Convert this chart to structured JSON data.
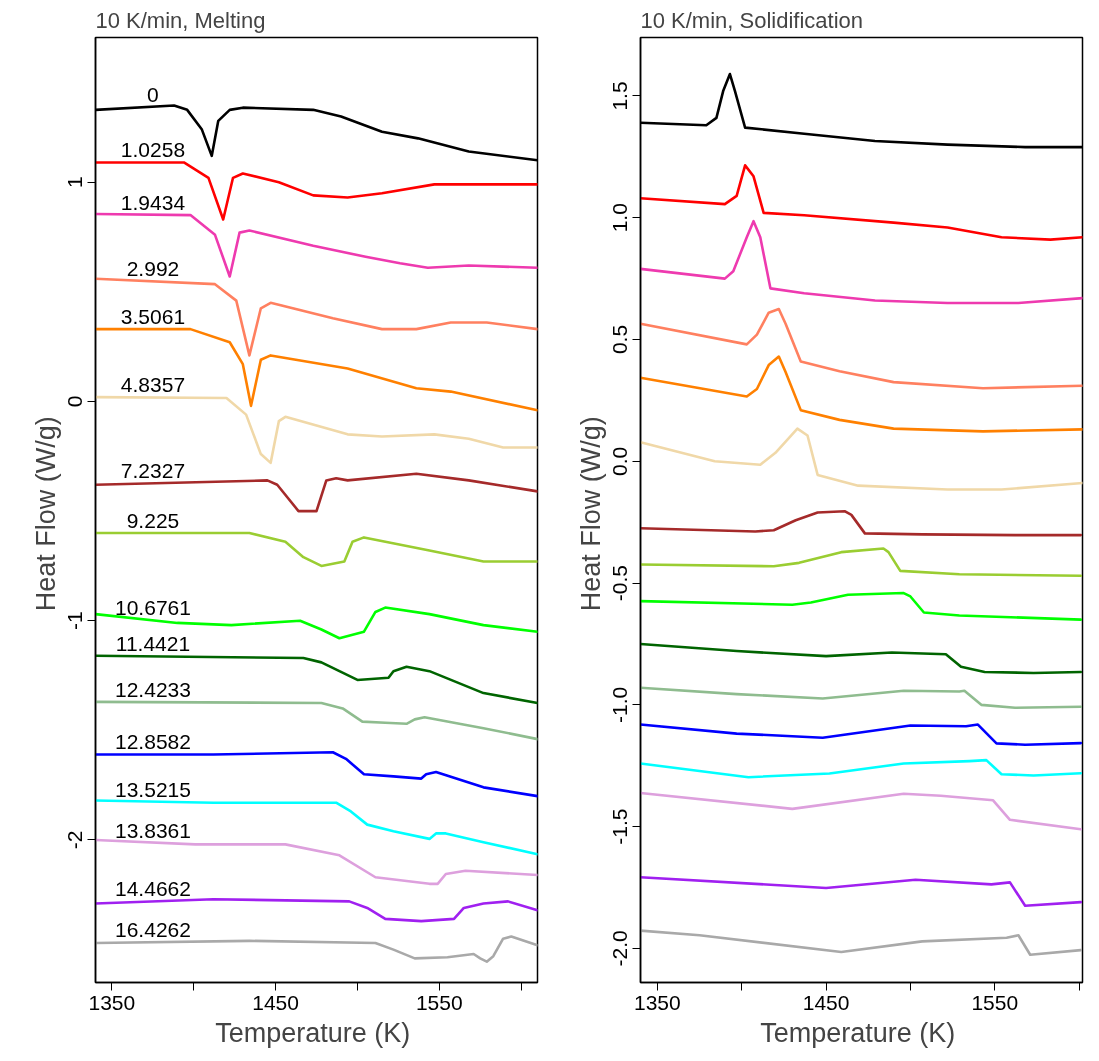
{
  "chart_data": [
    {
      "type": "line",
      "title": "10 K/min, Melting",
      "xlabel": "Temperature  (K)",
      "ylabel": "Heat Flow  (W/g)",
      "xlim": [
        1340,
        1610
      ],
      "ylim": [
        -2.65,
        1.66
      ],
      "xticks": [
        1350,
        {
          "value": 1400,
          "label": null
        },
        1450,
        {
          "value": 1500,
          "label": null
        },
        1550,
        {
          "value": 1600,
          "label": null
        }
      ],
      "yticks": [
        -2,
        -1,
        0,
        1
      ],
      "grid": false,
      "marker": "none",
      "line_style": "solid",
      "series": [
        {
          "name": "0",
          "color": "#000000",
          "x": [
            1340,
            1388,
            1396,
            1405,
            1411,
            1415,
            1422,
            1430,
            1473,
            1490,
            1515,
            1537,
            1568,
            1610
          ],
          "values": [
            1.33,
            1.35,
            1.33,
            1.24,
            1.12,
            1.28,
            1.33,
            1.34,
            1.33,
            1.3,
            1.23,
            1.2,
            1.14,
            1.1
          ]
        },
        {
          "name": "1.0258",
          "color": "#ff0000",
          "x": [
            1340,
            1394,
            1409,
            1418,
            1424,
            1430,
            1452,
            1473,
            1494,
            1515,
            1547,
            1610
          ],
          "values": [
            1.09,
            1.09,
            1.02,
            0.83,
            1.02,
            1.04,
            1.0,
            0.94,
            0.93,
            0.95,
            0.99,
            0.99
          ]
        },
        {
          "name": "1.9434",
          "color": "#ee3aaf",
          "x": [
            1340,
            1398,
            1413,
            1422,
            1428,
            1434,
            1473,
            1505,
            1526,
            1543,
            1568,
            1610
          ],
          "values": [
            0.855,
            0.85,
            0.76,
            0.57,
            0.77,
            0.78,
            0.71,
            0.66,
            0.63,
            0.61,
            0.62,
            0.61
          ]
        },
        {
          "name": "2.992",
          "color": "#ff8060",
          "x": [
            1340,
            1413,
            1426,
            1434,
            1441,
            1447,
            1485,
            1515,
            1536,
            1557,
            1579,
            1610
          ],
          "values": [
            0.56,
            0.535,
            0.46,
            0.21,
            0.425,
            0.45,
            0.38,
            0.33,
            0.33,
            0.36,
            0.36,
            0.33
          ]
        },
        {
          "name": "3.5061",
          "color": "#ff8000",
          "x": [
            1340,
            1398,
            1422,
            1430,
            1435,
            1441,
            1447,
            1494,
            1536,
            1557,
            1610
          ],
          "values": [
            0.33,
            0.33,
            0.27,
            0.17,
            -0.02,
            0.19,
            0.21,
            0.15,
            0.06,
            0.045,
            -0.04
          ]
        },
        {
          "name": "4.8357",
          "color": "#f0d8a8",
          "x": [
            1340,
            1420,
            1432,
            1441,
            1447,
            1452,
            1456,
            1494,
            1515,
            1547,
            1568,
            1589,
            1610
          ],
          "values": [
            0.02,
            0.016,
            -0.06,
            -0.24,
            -0.28,
            -0.09,
            -0.07,
            -0.15,
            -0.16,
            -0.15,
            -0.17,
            -0.21,
            -0.21
          ]
        },
        {
          "name": "7.2327",
          "color": "#a52a2a",
          "x": [
            1340,
            1445,
            1451,
            1464,
            1475,
            1481,
            1487,
            1494,
            1536,
            1568,
            1610
          ],
          "values": [
            -0.38,
            -0.36,
            -0.38,
            -0.5,
            -0.5,
            -0.36,
            -0.35,
            -0.36,
            -0.33,
            -0.36,
            -0.41
          ]
        },
        {
          "name": "9.225",
          "color": "#9acd32",
          "x": [
            1340,
            1434,
            1456,
            1467,
            1478,
            1492,
            1497,
            1504,
            1544,
            1577,
            1610
          ],
          "values": [
            -0.6,
            -0.6,
            -0.64,
            -0.71,
            -0.75,
            -0.73,
            -0.64,
            -0.62,
            -0.68,
            -0.73,
            -0.73
          ]
        },
        {
          "name": "10.6761",
          "color": "#00ff00",
          "x": [
            1340,
            1390,
            1423,
            1465,
            1478,
            1489,
            1504,
            1511,
            1517,
            1544,
            1577,
            1610
          ],
          "values": [
            -0.97,
            -1.01,
            -1.02,
            -1.0,
            -1.04,
            -1.08,
            -1.05,
            -0.96,
            -0.94,
            -0.97,
            -1.02,
            -1.05
          ]
        },
        {
          "name": "11.4421",
          "color": "#006400",
          "x": [
            1340,
            1467,
            1478,
            1500,
            1519,
            1522,
            1530,
            1544,
            1577,
            1610
          ],
          "values": [
            -1.16,
            -1.17,
            -1.19,
            -1.27,
            -1.26,
            -1.23,
            -1.21,
            -1.23,
            -1.33,
            -1.375
          ]
        },
        {
          "name": "12.4233",
          "color": "#8fbc8f",
          "x": [
            1340,
            1478,
            1491,
            1503,
            1517,
            1530,
            1535,
            1541,
            1577,
            1610
          ],
          "values": [
            -1.37,
            -1.375,
            -1.4,
            -1.46,
            -1.465,
            -1.47,
            -1.45,
            -1.44,
            -1.49,
            -1.54
          ]
        },
        {
          "name": "12.8582",
          "color": "#0000ff",
          "x": [
            1340,
            1412,
            1485,
            1493,
            1504,
            1522,
            1539,
            1542,
            1548,
            1577,
            1610
          ],
          "values": [
            -1.61,
            -1.61,
            -1.6,
            -1.63,
            -1.7,
            -1.71,
            -1.72,
            -1.7,
            -1.69,
            -1.76,
            -1.8
          ]
        },
        {
          "name": "13.5215",
          "color": "#00ffff",
          "x": [
            1340,
            1412,
            1487,
            1496,
            1506,
            1522,
            1544,
            1548,
            1554,
            1577,
            1610
          ],
          "values": [
            -1.82,
            -1.83,
            -1.83,
            -1.87,
            -1.93,
            -1.96,
            -1.995,
            -1.97,
            -1.97,
            -2.01,
            -2.065
          ]
        },
        {
          "name": "13.8361",
          "color": "#dda0dd",
          "x": [
            1340,
            1401,
            1456,
            1489,
            1511,
            1544,
            1549,
            1554,
            1566,
            1610
          ],
          "values": [
            -2.0,
            -2.02,
            -2.02,
            -2.07,
            -2.17,
            -2.2,
            -2.2,
            -2.155,
            -2.14,
            -2.16
          ]
        },
        {
          "name": "14.4662",
          "color": "#a020f0",
          "x": [
            1340,
            1412,
            1495,
            1506,
            1517,
            1539,
            1559,
            1565,
            1577,
            1592,
            1610
          ],
          "values": [
            -2.29,
            -2.27,
            -2.28,
            -2.31,
            -2.36,
            -2.37,
            -2.36,
            -2.31,
            -2.29,
            -2.28,
            -2.32
          ]
        },
        {
          "name": "16.4262",
          "color": "#a9a9a9",
          "x": [
            1340,
            1434,
            1511,
            1522,
            1535,
            1555,
            1571,
            1575,
            1579,
            1583,
            1589,
            1594,
            1610
          ],
          "values": [
            -2.47,
            -2.46,
            -2.47,
            -2.5,
            -2.54,
            -2.535,
            -2.52,
            -2.54,
            -2.555,
            -2.53,
            -2.45,
            -2.44,
            -2.48
          ]
        }
      ]
    },
    {
      "type": "line",
      "title": "10 K/min, Solidification",
      "xlabel": "Temperature  (K)",
      "ylabel": "Heat Flow  (W/g)",
      "xlim": [
        1340,
        1602
      ],
      "ylim": [
        -2.14,
        1.74
      ],
      "xticks": [
        1350,
        {
          "value": 1400,
          "label": null
        },
        1450,
        {
          "value": 1500,
          "label": null
        },
        1550,
        {
          "value": 1600,
          "label": null
        }
      ],
      "yticks": [
        {
          "value": -2,
          "label": "-2.0"
        },
        {
          "value": -1.5,
          "label": "-1.5"
        },
        {
          "value": -1,
          "label": "-1.0"
        },
        {
          "value": -0.5,
          "label": "-0.5"
        },
        {
          "value": 0,
          "label": "0.0"
        },
        {
          "value": 0.5,
          "label": "0.5"
        },
        {
          "value": 1,
          "label": "1.0"
        },
        {
          "value": 1.5,
          "label": "1.5"
        }
      ],
      "grid": false,
      "marker": "none",
      "line_style": "solid",
      "series": [
        {
          "color": "#000000",
          "x": [
            1340,
            1379,
            1385,
            1389,
            1393,
            1396,
            1402,
            1437,
            1479,
            1522,
            1568,
            1602
          ],
          "values": [
            1.39,
            1.38,
            1.41,
            1.52,
            1.59,
            1.52,
            1.37,
            1.345,
            1.315,
            1.3,
            1.29,
            1.29
          ]
        },
        {
          "color": "#ff0000",
          "x": [
            1340,
            1390,
            1397,
            1402,
            1407,
            1413,
            1437,
            1490,
            1522,
            1554,
            1583,
            1602
          ],
          "values": [
            1.08,
            1.056,
            1.09,
            1.215,
            1.17,
            1.02,
            1.01,
            0.98,
            0.96,
            0.92,
            0.91,
            0.92
          ]
        },
        {
          "color": "#ee3aaf",
          "x": [
            1340,
            1390,
            1395,
            1403,
            1407,
            1411,
            1417,
            1437,
            1479,
            1522,
            1564,
            1602
          ],
          "values": [
            0.79,
            0.75,
            0.78,
            0.92,
            0.986,
            0.92,
            0.71,
            0.69,
            0.66,
            0.65,
            0.65,
            0.67
          ]
        },
        {
          "color": "#ff8060",
          "x": [
            1340,
            1403,
            1409,
            1416,
            1422,
            1426,
            1435,
            1458,
            1490,
            1543,
            1602
          ],
          "values": [
            0.565,
            0.48,
            0.52,
            0.61,
            0.625,
            0.565,
            0.41,
            0.37,
            0.325,
            0.3,
            0.31
          ]
        },
        {
          "color": "#ff8000",
          "x": [
            1340,
            1403,
            1409,
            1416,
            1422,
            1426,
            1435,
            1458,
            1490,
            1543,
            1602
          ],
          "values": [
            0.343,
            0.266,
            0.297,
            0.395,
            0.43,
            0.367,
            0.21,
            0.17,
            0.134,
            0.123,
            0.131
          ]
        },
        {
          "color": "#f0d8a8",
          "x": [
            1340,
            1384,
            1411,
            1420,
            1433,
            1439,
            1445,
            1469,
            1522,
            1554,
            1602
          ],
          "values": [
            0.078,
            0.0,
            -0.014,
            0.035,
            0.134,
            0.106,
            -0.056,
            -0.1,
            -0.116,
            -0.116,
            -0.089
          ]
        },
        {
          "color": "#a52a2a",
          "x": [
            1340,
            1408,
            1419,
            1432,
            1445,
            1461,
            1465,
            1473,
            1507,
            1562,
            1601
          ],
          "values": [
            -0.275,
            -0.288,
            -0.283,
            -0.242,
            -0.21,
            -0.205,
            -0.22,
            -0.296,
            -0.3,
            -0.303,
            -0.303
          ]
        },
        {
          "color": "#9acd32",
          "x": [
            1340,
            1419,
            1434,
            1459,
            1484,
            1487,
            1494,
            1529,
            1601
          ],
          "values": [
            -0.424,
            -0.431,
            -0.417,
            -0.373,
            -0.358,
            -0.373,
            -0.45,
            -0.464,
            -0.47
          ]
        },
        {
          "color": "#00ff00",
          "x": [
            1340,
            1430,
            1441,
            1463,
            1496,
            1500,
            1508,
            1529,
            1601
          ],
          "values": [
            -0.574,
            -0.589,
            -0.58,
            -0.548,
            -0.541,
            -0.555,
            -0.621,
            -0.633,
            -0.65
          ]
        },
        {
          "color": "#006400",
          "x": [
            1340,
            1397,
            1450,
            1489,
            1521,
            1530,
            1544,
            1573,
            1601
          ],
          "values": [
            -0.75,
            -0.779,
            -0.8,
            -0.785,
            -0.792,
            -0.844,
            -0.865,
            -0.869,
            -0.865
          ]
        },
        {
          "color": "#8fbc8f",
          "x": [
            1340,
            1397,
            1448,
            1496,
            1529,
            1532,
            1542,
            1562,
            1601
          ],
          "values": [
            -0.93,
            -0.956,
            -0.974,
            -0.942,
            -0.945,
            -0.942,
            -1.0,
            -1.012,
            -1.008
          ]
        },
        {
          "color": "#0000ff",
          "x": [
            1340,
            1397,
            1448,
            1500,
            1533,
            1540,
            1551,
            1568,
            1601
          ],
          "values": [
            -1.081,
            -1.118,
            -1.135,
            -1.085,
            -1.088,
            -1.081,
            -1.158,
            -1.164,
            -1.157
          ]
        },
        {
          "color": "#00ffff",
          "x": [
            1340,
            1404,
            1452,
            1496,
            1535,
            1545,
            1554,
            1573,
            1601
          ],
          "values": [
            -1.241,
            -1.297,
            -1.282,
            -1.241,
            -1.231,
            -1.227,
            -1.285,
            -1.29,
            -1.281
          ]
        },
        {
          "color": "#dda0dd",
          "x": [
            1340,
            1430,
            1496,
            1518,
            1549,
            1559,
            1601
          ],
          "values": [
            -1.362,
            -1.427,
            -1.365,
            -1.373,
            -1.392,
            -1.472,
            -1.511
          ]
        },
        {
          "color": "#a020f0",
          "x": [
            1340,
            1450,
            1503,
            1548,
            1559,
            1568,
            1601
          ],
          "values": [
            -1.708,
            -1.752,
            -1.718,
            -1.737,
            -1.729,
            -1.825,
            -1.81
          ]
        },
        {
          "color": "#a9a9a9",
          "x": [
            1340,
            1375,
            1459,
            1507,
            1557,
            1564,
            1571,
            1601
          ],
          "values": [
            -1.927,
            -1.946,
            -2.015,
            -1.971,
            -1.956,
            -1.946,
            -2.026,
            -2.007
          ]
        }
      ]
    }
  ]
}
